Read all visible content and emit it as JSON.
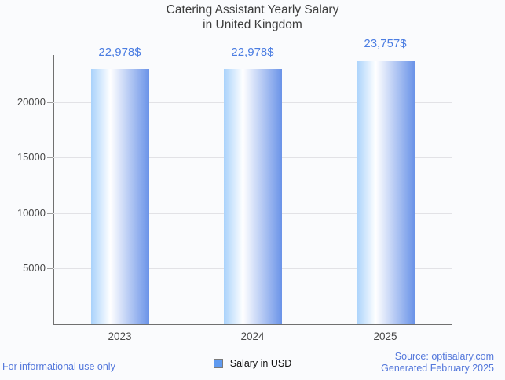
{
  "title": {
    "line1": "Catering Assistant Yearly Salary",
    "line2": "in United Kingdom"
  },
  "chart_data": {
    "type": "bar",
    "title": "Catering Assistant Yearly Salary in United Kingdom",
    "categories": [
      "2023",
      "2024",
      "2025"
    ],
    "series": [
      {
        "name": "Salary in USD",
        "values": [
          22978,
          22978,
          23757
        ]
      }
    ],
    "bar_labels": [
      "22,978$",
      "22,978$",
      "23,757$"
    ],
    "xlabel": "",
    "ylabel": "",
    "ylim": [
      0,
      24250
    ],
    "yticks": [
      5000,
      10000,
      15000,
      20000
    ],
    "ytick_labels": [
      "5000",
      "10000",
      "15000",
      "20000"
    ],
    "grid": true,
    "legend_position": "bottom"
  },
  "legend": {
    "label": "Salary in USD"
  },
  "footer": {
    "left": "For informational use only",
    "source": "Source: optisalary.com",
    "generated": "Generated February 2025"
  },
  "colors": {
    "background": "#fafbfd",
    "title_text": "#3d3d3d",
    "axis_label": "#464646",
    "axis_line": "#707070",
    "gridline": "#e2e2e6",
    "value_label": "#4b7de2",
    "footer_text": "#5377db",
    "legend_swatch": "#5f9af0",
    "bar_gradient": [
      "#a9d2fb",
      "#ffffff",
      "#6a93e8"
    ]
  }
}
